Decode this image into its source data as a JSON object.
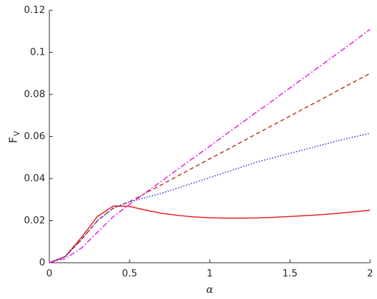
{
  "chart_data": {
    "type": "line",
    "xlabel": "α",
    "ylabel": {
      "main": "F",
      "subscript": "V"
    },
    "x": [
      0,
      0.1,
      0.2,
      0.3,
      0.4,
      0.5,
      0.6,
      0.7,
      0.8,
      0.9,
      1.0,
      1.1,
      1.2,
      1.3,
      1.4,
      1.5,
      1.6,
      1.7,
      1.8,
      1.9,
      2.0
    ],
    "series": [
      {
        "color": "#e8191e",
        "linestyle": "solid",
        "values": [
          0,
          0.003,
          0.012,
          0.022,
          0.027,
          0.0268,
          0.025,
          0.0235,
          0.0225,
          0.0218,
          0.0214,
          0.0212,
          0.0212,
          0.0213,
          0.0216,
          0.022,
          0.0224,
          0.0229,
          0.0235,
          0.0242,
          0.025
        ]
      },
      {
        "color": "#b5371c",
        "linestyle": "dashed",
        "values": [
          0,
          0.003,
          0.011,
          0.02,
          0.026,
          0.029,
          0.0331,
          0.0371,
          0.0412,
          0.0453,
          0.0494,
          0.0534,
          0.0575,
          0.0616,
          0.0656,
          0.0697,
          0.0738,
          0.0778,
          0.0819,
          0.086,
          0.09
        ]
      },
      {
        "color": "#1a1adb",
        "linestyle": "dotted",
        "values": [
          0,
          0.003,
          0.011,
          0.02,
          0.026,
          0.029,
          0.031,
          0.033,
          0.0355,
          0.038,
          0.0405,
          0.043,
          0.0455,
          0.048,
          0.05,
          0.052,
          0.054,
          0.056,
          0.058,
          0.0598,
          0.0615
        ]
      },
      {
        "color": "#e619e6",
        "linestyle": "dashdot",
        "values": [
          0,
          0.002,
          0.007,
          0.0145,
          0.022,
          0.0278,
          0.0333,
          0.0388,
          0.0444,
          0.0499,
          0.0554,
          0.061,
          0.0665,
          0.072,
          0.0775,
          0.0831,
          0.0886,
          0.0941,
          0.0997,
          0.1052,
          0.111
        ]
      }
    ],
    "xlim": [
      0,
      2
    ],
    "xticks": [
      0,
      0.5,
      1,
      1.5,
      2
    ],
    "ylim": [
      0,
      0.12
    ],
    "yticks": [
      0,
      0.02,
      0.04,
      0.06,
      0.08,
      0.1,
      0.12
    ],
    "grid": false
  }
}
